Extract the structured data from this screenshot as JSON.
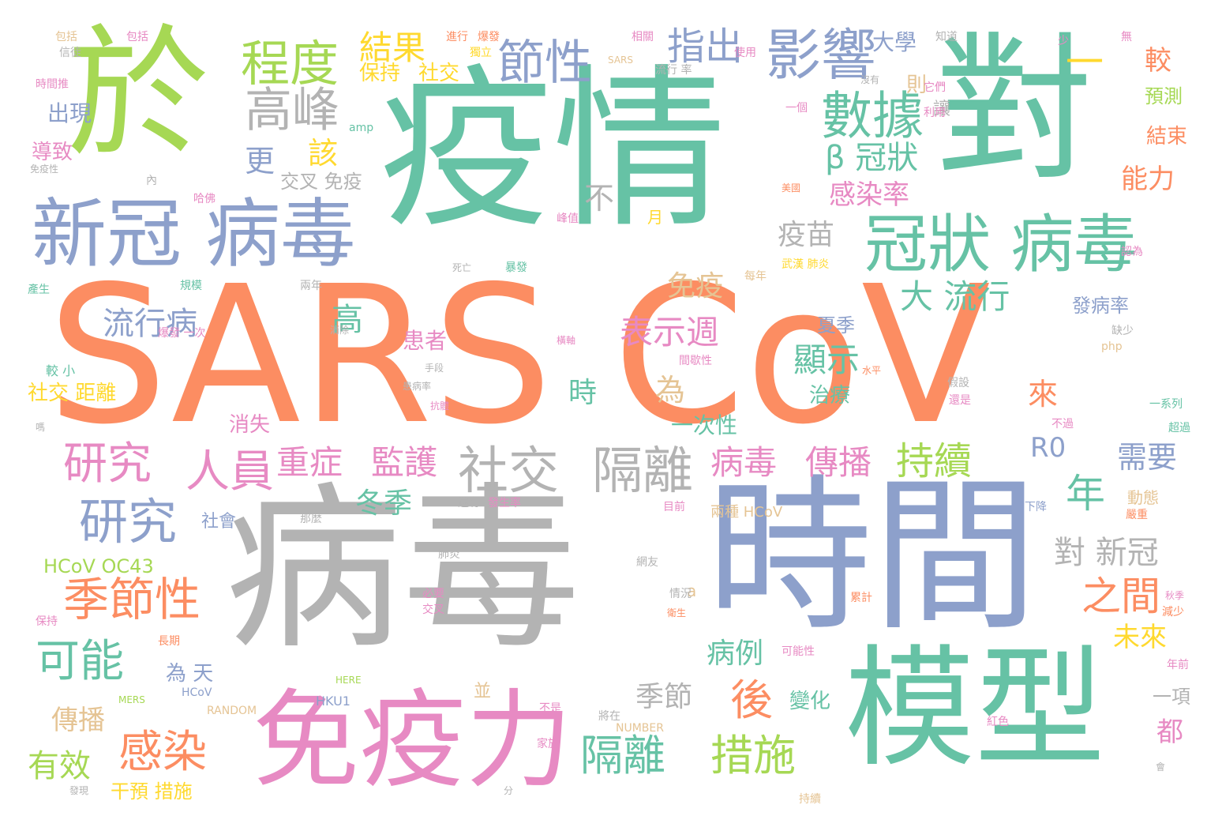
{
  "palette": {
    "orange": "#fc8d62",
    "teal": "#66c2a5",
    "blue": "#8da0cb",
    "pink": "#e78ac3",
    "green": "#a6d854",
    "yellow": "#ffd92f",
    "tan": "#e5c494",
    "gray": "#b3b3b3"
  },
  "words": [
    {
      "text": "SARS CoV",
      "color": "orange"
    },
    {
      "text": "疫情",
      "color": "teal"
    },
    {
      "text": "病毒",
      "color": "gray"
    },
    {
      "text": "時間",
      "color": "blue"
    },
    {
      "text": "對",
      "color": "teal"
    },
    {
      "text": "於",
      "color": "green"
    },
    {
      "text": "模型",
      "color": "teal"
    },
    {
      "text": "免疫力",
      "color": "pink"
    },
    {
      "text": "新冠 病毒",
      "color": "blue"
    },
    {
      "text": "冠狀 病毒",
      "color": "teal"
    },
    {
      "text": "影響",
      "color": "blue"
    },
    {
      "text": "數據",
      "color": "teal"
    },
    {
      "text": "程度",
      "color": "green"
    },
    {
      "text": "高峰",
      "color": "gray"
    },
    {
      "text": "節性",
      "color": "blue"
    },
    {
      "text": "指出",
      "color": "blue"
    },
    {
      "text": "結果",
      "color": "yellow"
    },
    {
      "text": "保持",
      "color": "yellow"
    },
    {
      "text": "社交",
      "color": "yellow"
    },
    {
      "text": "大學",
      "color": "blue"
    },
    {
      "text": "β 冠狀",
      "color": "teal"
    },
    {
      "text": "感染率",
      "color": "pink"
    },
    {
      "text": "一",
      "color": "yellow"
    },
    {
      "text": "則",
      "color": "tan"
    },
    {
      "text": "讓",
      "color": "gray"
    },
    {
      "text": "較",
      "color": "orange"
    },
    {
      "text": "預測",
      "color": "green"
    },
    {
      "text": "結束",
      "color": "orange"
    },
    {
      "text": "能力",
      "color": "orange"
    },
    {
      "text": "該",
      "color": "yellow"
    },
    {
      "text": "更",
      "color": "blue"
    },
    {
      "text": "交叉 免疫",
      "color": "gray"
    },
    {
      "text": "不",
      "color": "gray"
    },
    {
      "text": "疫苗",
      "color": "gray"
    },
    {
      "text": "免疫",
      "color": "tan"
    },
    {
      "text": "大 流行",
      "color": "teal"
    },
    {
      "text": "表示週",
      "color": "pink"
    },
    {
      "text": "夏季",
      "color": "blue"
    },
    {
      "text": "顯示",
      "color": "teal"
    },
    {
      "text": "治療",
      "color": "teal"
    },
    {
      "text": "為",
      "color": "tan"
    },
    {
      "text": "時",
      "color": "teal"
    },
    {
      "text": "一次性",
      "color": "teal"
    },
    {
      "text": "流行病",
      "color": "blue"
    },
    {
      "text": "高",
      "color": "teal"
    },
    {
      "text": "患者",
      "color": "pink"
    },
    {
      "text": "社交 距離",
      "color": "yellow"
    },
    {
      "text": "消失",
      "color": "pink"
    },
    {
      "text": "出現",
      "color": "blue"
    },
    {
      "text": "導致",
      "color": "pink"
    },
    {
      "text": "研究",
      "color": "pink"
    },
    {
      "text": "人員",
      "color": "pink"
    },
    {
      "text": "重症",
      "color": "pink"
    },
    {
      "text": "監護",
      "color": "pink"
    },
    {
      "text": "社交",
      "color": "gray"
    },
    {
      "text": "隔離",
      "color": "gray"
    },
    {
      "text": "病毒",
      "color": "pink"
    },
    {
      "text": "傳播",
      "color": "pink"
    },
    {
      "text": "持續",
      "color": "green"
    },
    {
      "text": "R0",
      "color": "blue"
    },
    {
      "text": "需要",
      "color": "blue"
    },
    {
      "text": "年",
      "color": "teal"
    },
    {
      "text": "來",
      "color": "orange"
    },
    {
      "text": "冬季",
      "color": "teal"
    },
    {
      "text": "研究",
      "color": "blue"
    },
    {
      "text": "社會",
      "color": "blue"
    },
    {
      "text": "HCoV OC43",
      "color": "green"
    },
    {
      "text": "季節性",
      "color": "orange"
    },
    {
      "text": "可能",
      "color": "teal"
    },
    {
      "text": "感染",
      "color": "orange"
    },
    {
      "text": "對 新冠",
      "color": "gray"
    },
    {
      "text": "之間",
      "color": "orange"
    },
    {
      "text": "未來",
      "color": "yellow"
    },
    {
      "text": "病例",
      "color": "teal"
    },
    {
      "text": "為 天",
      "color": "blue"
    },
    {
      "text": "季節",
      "color": "gray"
    },
    {
      "text": "後",
      "color": "orange"
    },
    {
      "text": "隔離",
      "color": "teal"
    },
    {
      "text": "措施",
      "color": "green"
    },
    {
      "text": "變化",
      "color": "teal"
    },
    {
      "text": "傳播",
      "color": "tan"
    },
    {
      "text": "有效",
      "color": "green"
    },
    {
      "text": "干預 措施",
      "color": "yellow"
    },
    {
      "text": "並",
      "color": "tan"
    },
    {
      "text": "一項",
      "color": "gray"
    },
    {
      "text": "都",
      "color": "pink"
    },
    {
      "text": "發病率",
      "color": "blue"
    },
    {
      "text": "動態",
      "color": "tan"
    },
    {
      "text": "兩種 HCoV",
      "color": "tan"
    },
    {
      "text": "a",
      "color": "tan"
    },
    {
      "text": "HKU1",
      "color": "blue"
    },
    {
      "text": "HCoV",
      "color": "blue"
    },
    {
      "text": "MERS",
      "color": "green"
    },
    {
      "text": "RANDOM",
      "color": "tan"
    },
    {
      "text": "NUMBER",
      "color": "tan"
    },
    {
      "text": "HERE",
      "color": "green"
    },
    {
      "text": "amp",
      "color": "teal"
    },
    {
      "text": "php",
      "color": "tan"
    },
    {
      "text": "SARS",
      "color": "tan"
    },
    {
      "text": "流行 率",
      "color": "gray"
    },
    {
      "text": "月",
      "color": "yellow"
    },
    {
      "text": "目前",
      "color": "pink"
    },
    {
      "text": "下降",
      "color": "blue"
    },
    {
      "text": "武漢 肺炎",
      "color": "yellow"
    },
    {
      "text": "每年",
      "color": "tan"
    },
    {
      "text": "使用",
      "color": "pink"
    },
    {
      "text": "相關",
      "color": "pink"
    },
    {
      "text": "進行",
      "color": "orange"
    },
    {
      "text": "爆發",
      "color": "orange"
    },
    {
      "text": "包括",
      "color": "pink"
    },
    {
      "text": "知道",
      "color": "gray"
    },
    {
      "text": "無",
      "color": "pink"
    },
    {
      "text": "少",
      "color": "pink"
    },
    {
      "text": "認為",
      "color": "pink"
    },
    {
      "text": "手段",
      "color": "gray"
    },
    {
      "text": "患病率",
      "color": "gray"
    },
    {
      "text": "抗體",
      "color": "pink"
    },
    {
      "text": "情況",
      "color": "gray"
    },
    {
      "text": "衛生",
      "color": "orange"
    },
    {
      "text": "可能性",
      "color": "pink"
    },
    {
      "text": "肺炎",
      "color": "gray"
    },
    {
      "text": "網友",
      "color": "gray"
    },
    {
      "text": "必要",
      "color": "pink"
    },
    {
      "text": "交叉",
      "color": "pink"
    },
    {
      "text": "長期",
      "color": "orange"
    },
    {
      "text": "規模",
      "color": "teal"
    },
    {
      "text": "兩年",
      "color": "gray"
    },
    {
      "text": "爆發 一次",
      "color": "pink"
    },
    {
      "text": "消除",
      "color": "gray"
    },
    {
      "text": "較 小",
      "color": "teal"
    },
    {
      "text": "死亡",
      "color": "gray"
    },
    {
      "text": "暴發",
      "color": "teal"
    },
    {
      "text": "峰值",
      "color": "pink"
    },
    {
      "text": "哈佛",
      "color": "pink"
    },
    {
      "text": "美國",
      "color": "orange"
    },
    {
      "text": "免疫性",
      "color": "gray"
    },
    {
      "text": "內",
      "color": "gray"
    },
    {
      "text": "時間推",
      "color": "pink"
    },
    {
      "text": "包括",
      "color": "tan"
    },
    {
      "text": "信徒",
      "color": "gray"
    },
    {
      "text": "間歇性",
      "color": "pink"
    },
    {
      "text": "水平",
      "color": "orange"
    },
    {
      "text": "假設",
      "color": "gray"
    },
    {
      "text": "還是",
      "color": "pink"
    },
    {
      "text": "缺少",
      "color": "gray"
    },
    {
      "text": "一系列",
      "color": "teal"
    },
    {
      "text": "超過",
      "color": "teal"
    },
    {
      "text": "不過",
      "color": "pink"
    },
    {
      "text": "秋季",
      "color": "pink"
    },
    {
      "text": "減少",
      "color": "orange"
    },
    {
      "text": "累計",
      "color": "orange"
    },
    {
      "text": "紅色",
      "color": "pink"
    },
    {
      "text": "年前",
      "color": "pink"
    },
    {
      "text": "將在",
      "color": "gray"
    },
    {
      "text": "家族",
      "color": "pink"
    },
    {
      "text": "不是",
      "color": "pink"
    },
    {
      "text": "分",
      "color": "gray"
    },
    {
      "text": "發現",
      "color": "gray"
    },
    {
      "text": "會",
      "color": "gray"
    },
    {
      "text": "那麼",
      "color": "gray"
    },
    {
      "text": "還有",
      "color": "gray"
    },
    {
      "text": "發生率",
      "color": "pink"
    },
    {
      "text": "嚴重",
      "color": "orange"
    },
    {
      "text": "一個",
      "color": "pink"
    },
    {
      "text": "它們",
      "color": "pink"
    },
    {
      "text": "利用",
      "color": "pink"
    },
    {
      "text": "沒有",
      "color": "gray"
    },
    {
      "text": "橫軸",
      "color": "pink"
    },
    {
      "text": "產生",
      "color": "teal"
    },
    {
      "text": "保持",
      "color": "pink"
    },
    {
      "text": "嗎",
      "color": "gray"
    },
    {
      "text": "持續",
      "color": "tan"
    },
    {
      "text": "獨立",
      "color": "yellow"
    }
  ]
}
